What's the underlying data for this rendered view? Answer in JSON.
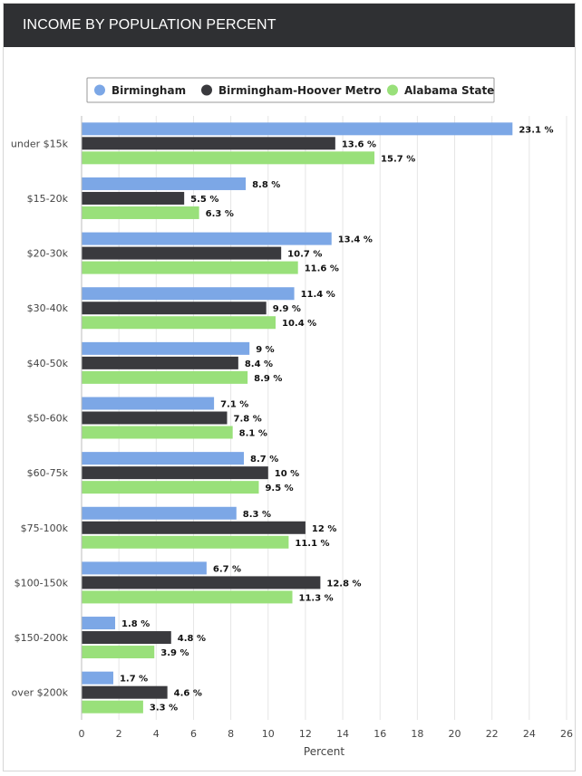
{
  "header": {
    "title": "INCOME BY POPULATION PERCENT"
  },
  "chart_data": {
    "type": "bar",
    "orientation": "horizontal",
    "categories": [
      "under $15k",
      "$15-20k",
      "$20-30k",
      "$30-40k",
      "$40-50k",
      "$50-60k",
      "$60-75k",
      "$75-100k",
      "$100-150k",
      "$150-200k",
      "over $200k"
    ],
    "series": [
      {
        "name": "Birmingham",
        "color": "#7ca7e6",
        "values": [
          23.1,
          8.8,
          13.4,
          11.4,
          9,
          7.1,
          8.7,
          8.3,
          6.7,
          1.8,
          1.7
        ]
      },
      {
        "name": "Birmingham-Hoover Metro",
        "color": "#3a3a3e",
        "values": [
          13.6,
          5.5,
          10.7,
          9.9,
          8.4,
          7.8,
          10,
          12,
          12.8,
          4.8,
          4.6
        ]
      },
      {
        "name": "Alabama State",
        "color": "#99e07a",
        "values": [
          15.7,
          6.3,
          11.6,
          10.4,
          8.9,
          8.1,
          9.5,
          11.1,
          11.3,
          3.9,
          3.3
        ]
      }
    ],
    "xlabel": "Percent",
    "xlim": [
      0,
      26
    ],
    "xticks": [
      0,
      2,
      4,
      6,
      8,
      10,
      12,
      14,
      16,
      18,
      20,
      22,
      24,
      26
    ],
    "value_suffix": " %",
    "legend_position": "top-center",
    "grid": true
  }
}
